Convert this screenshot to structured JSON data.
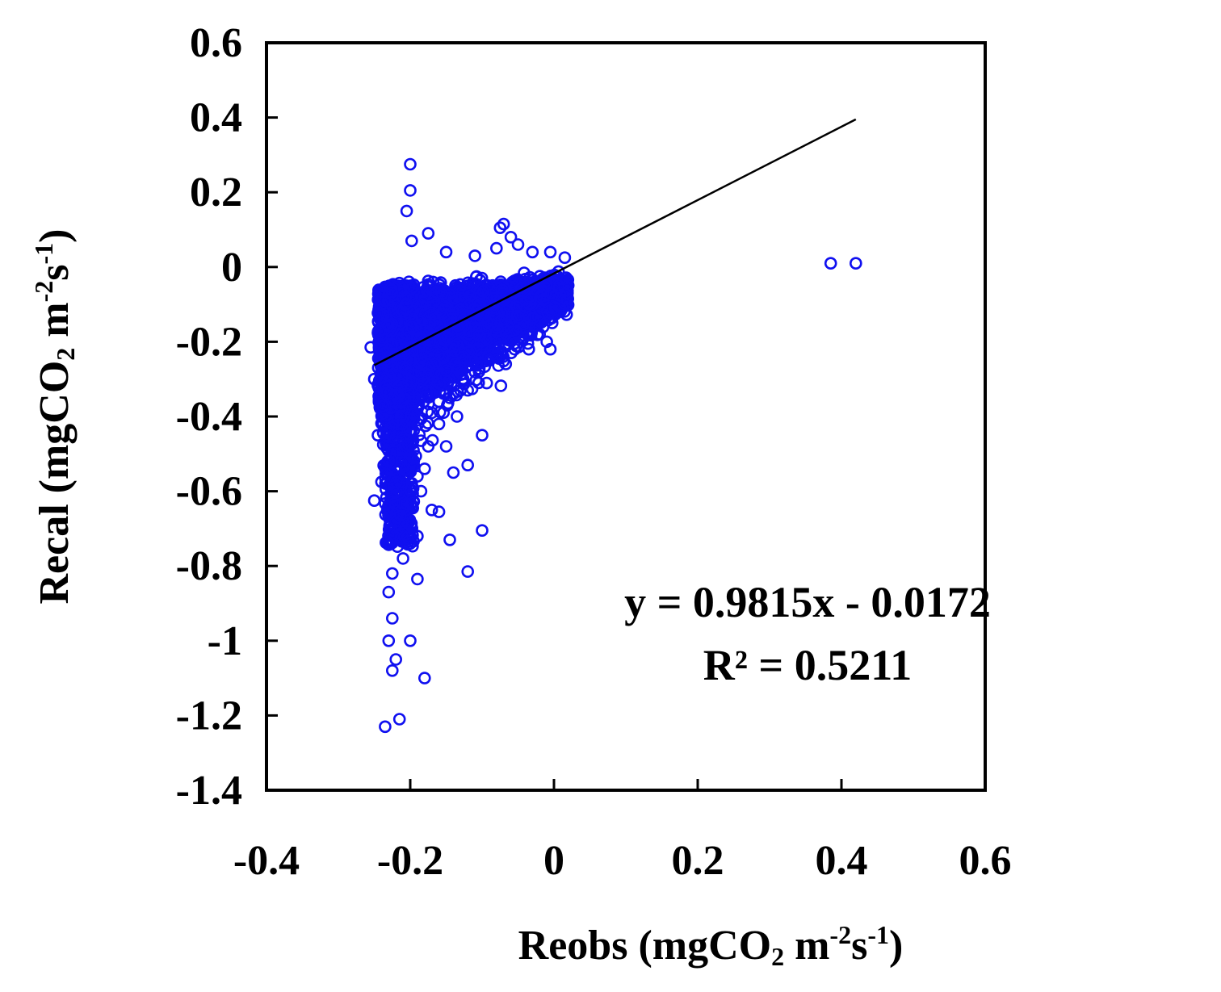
{
  "chart_data": {
    "type": "scatter",
    "xlabel": {
      "parts": [
        {
          "t": "Reobs (mgCO",
          "k": "n"
        },
        {
          "t": "2",
          "k": "sub"
        },
        {
          "t": " m",
          "k": "n"
        },
        {
          "t": "-2",
          "k": "sup"
        },
        {
          "t": "s",
          "k": "n"
        },
        {
          "t": "-1",
          "k": "sup"
        },
        {
          "t": ")",
          "k": "n"
        }
      ]
    },
    "ylabel": {
      "parts": [
        {
          "t": "Recal (mgCO",
          "k": "n"
        },
        {
          "t": "2",
          "k": "sub"
        },
        {
          "t": " m",
          "k": "n"
        },
        {
          "t": "-2",
          "k": "sup"
        },
        {
          "t": "s",
          "k": "n"
        },
        {
          "t": "-1",
          "k": "sup"
        },
        {
          "t": ")",
          "k": "n"
        }
      ]
    },
    "xlim": [
      -0.4,
      0.6
    ],
    "ylim": [
      -1.4,
      0.6
    ],
    "xticks": [
      -0.4,
      -0.2,
      0,
      0.2,
      0.4,
      0.6
    ],
    "xtick_labels": [
      "-0.4",
      "-0.2",
      "0",
      "0.2",
      "0.4",
      "0.6"
    ],
    "yticks": [
      0.6,
      0.4,
      0.2,
      0,
      -0.2,
      -0.4,
      -0.6,
      -0.8,
      -1,
      -1.2,
      -1.4
    ],
    "ytick_labels": [
      "0.6",
      "0.4",
      "0.2",
      "0",
      "-0.2",
      "-0.4",
      "-0.6",
      "-0.8",
      "-1",
      "-1.2",
      "-1.4"
    ],
    "grid": false,
    "series": [
      {
        "marker_color": "#1010f0",
        "points": [
          [
            -0.2,
            0.275
          ],
          [
            -0.2,
            0.205
          ],
          [
            -0.205,
            0.15
          ],
          [
            -0.198,
            0.07
          ],
          [
            -0.175,
            0.09
          ],
          [
            -0.07,
            0.115
          ],
          [
            -0.075,
            0.105
          ],
          [
            -0.06,
            0.08
          ],
          [
            -0.05,
            0.06
          ],
          [
            -0.03,
            0.04
          ],
          [
            0.015,
            0.025
          ],
          [
            -0.08,
            0.05
          ],
          [
            -0.11,
            0.03
          ],
          [
            -0.15,
            0.04
          ],
          [
            -0.005,
            0.04
          ],
          [
            -0.255,
            -0.215
          ],
          [
            -0.24,
            -0.245
          ],
          [
            -0.25,
            -0.3
          ],
          [
            -0.232,
            -0.335
          ],
          [
            -0.035,
            -0.22
          ],
          [
            -0.01,
            -0.2
          ],
          [
            -0.005,
            -0.22
          ],
          [
            -0.02,
            -0.18
          ],
          [
            -0.055,
            -0.205
          ],
          [
            -0.08,
            -0.24
          ],
          [
            -0.09,
            -0.25
          ],
          [
            -0.1,
            -0.45
          ],
          [
            -0.12,
            -0.53
          ],
          [
            -0.14,
            -0.55
          ],
          [
            -0.15,
            -0.48
          ],
          [
            -0.135,
            -0.4
          ],
          [
            -0.13,
            -0.33
          ],
          [
            -0.12,
            -0.33
          ],
          [
            -0.16,
            -0.42
          ],
          [
            -0.17,
            -0.39
          ],
          [
            -0.145,
            -0.35
          ],
          [
            -0.16,
            -0.36
          ],
          [
            -0.17,
            -0.65
          ],
          [
            -0.16,
            -0.655
          ],
          [
            -0.185,
            -0.6
          ],
          [
            -0.18,
            -0.54
          ],
          [
            -0.19,
            -0.56
          ],
          [
            -0.175,
            -0.48
          ],
          [
            -0.185,
            -0.465
          ],
          [
            -0.145,
            -0.73
          ],
          [
            -0.1,
            -0.705
          ],
          [
            -0.12,
            -0.815
          ],
          [
            -0.19,
            -0.835
          ],
          [
            -0.19,
            -0.72
          ],
          [
            -0.2,
            -0.74
          ],
          [
            -0.25,
            -0.625
          ],
          [
            -0.24,
            -0.575
          ],
          [
            -0.245,
            -0.45
          ],
          [
            -0.23,
            -0.52
          ],
          [
            -0.225,
            -0.82
          ],
          [
            -0.23,
            -0.87
          ],
          [
            -0.225,
            -0.94
          ],
          [
            -0.23,
            -1.0
          ],
          [
            -0.2,
            -1.0
          ],
          [
            -0.22,
            -1.05
          ],
          [
            -0.225,
            -1.08
          ],
          [
            -0.18,
            -1.1
          ],
          [
            -0.215,
            -1.21
          ],
          [
            -0.235,
            -1.23
          ],
          [
            -0.21,
            -0.78
          ],
          [
            0.385,
            0.01
          ],
          [
            0.42,
            0.01
          ]
        ]
      }
    ],
    "trendline": {
      "slope": 0.9815,
      "intercept": -0.0172,
      "x_range": [
        -0.25,
        0.42
      ],
      "color": "#000000"
    },
    "annotations": {
      "equation": "y = 0.9815x - 0.0172",
      "r2": "R² = 0.5211"
    }
  }
}
